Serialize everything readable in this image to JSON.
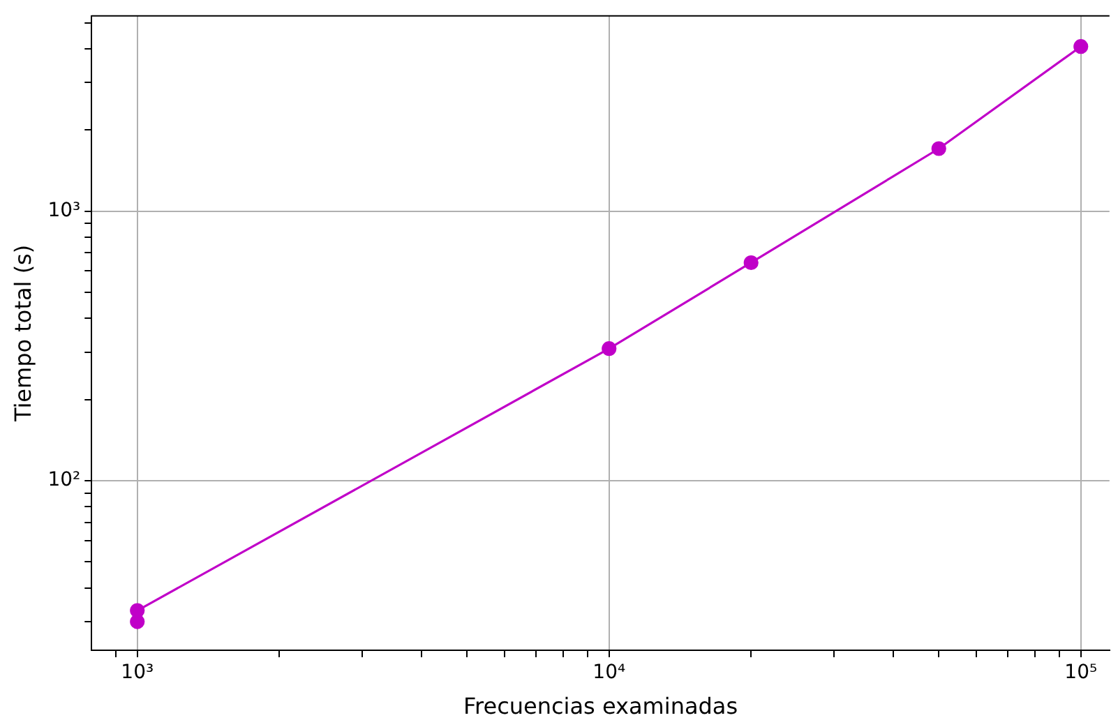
{
  "chart_data": {
    "type": "line",
    "xlabel": "Frecuencias examinadas",
    "ylabel": "Tiempo total (s)",
    "log": "xy",
    "grid": true,
    "marker": "circle",
    "line_style": "solid",
    "x": [
      1000,
      1000,
      10000,
      20000,
      50000,
      100000
    ],
    "series": [
      {
        "color": "#c000c8",
        "values": [
          30,
          33,
          309,
          644,
          1706,
          4080
        ]
      }
    ],
    "xlim": [
      800,
      115000
    ],
    "ylim": [
      23.5,
      5300
    ],
    "xticks": [
      {
        "value": 900,
        "label": null
      },
      {
        "value": 1000,
        "label": "10³"
      },
      {
        "value": 2000,
        "label": null
      },
      {
        "value": 3000,
        "label": null
      },
      {
        "value": 4000,
        "label": null
      },
      {
        "value": 5000,
        "label": null
      },
      {
        "value": 6000,
        "label": null
      },
      {
        "value": 7000,
        "label": null
      },
      {
        "value": 8000,
        "label": null
      },
      {
        "value": 9000,
        "label": null
      },
      {
        "value": 10000,
        "label": "10⁴"
      },
      {
        "value": 20000,
        "label": null
      },
      {
        "value": 30000,
        "label": null
      },
      {
        "value": 40000,
        "label": null
      },
      {
        "value": 50000,
        "label": null
      },
      {
        "value": 60000,
        "label": null
      },
      {
        "value": 70000,
        "label": null
      },
      {
        "value": 80000,
        "label": null
      },
      {
        "value": 90000,
        "label": null
      },
      {
        "value": 100000,
        "label": "10⁵"
      }
    ],
    "yticks": [
      {
        "value": 30,
        "label": null
      },
      {
        "value": 40,
        "label": null
      },
      {
        "value": 50,
        "label": null
      },
      {
        "value": 60,
        "label": null
      },
      {
        "value": 70,
        "label": null
      },
      {
        "value": 80,
        "label": null
      },
      {
        "value": 90,
        "label": null
      },
      {
        "value": 100,
        "label": "10²"
      },
      {
        "value": 200,
        "label": null
      },
      {
        "value": 300,
        "label": null
      },
      {
        "value": 400,
        "label": null
      },
      {
        "value": 500,
        "label": null
      },
      {
        "value": 600,
        "label": null
      },
      {
        "value": 700,
        "label": null
      },
      {
        "value": 800,
        "label": null
      },
      {
        "value": 900,
        "label": null
      },
      {
        "value": 1000,
        "label": "10³"
      },
      {
        "value": 2000,
        "label": null
      },
      {
        "value": 3000,
        "label": null
      },
      {
        "value": 4000,
        "label": null
      },
      {
        "value": 5000,
        "label": null
      }
    ]
  }
}
